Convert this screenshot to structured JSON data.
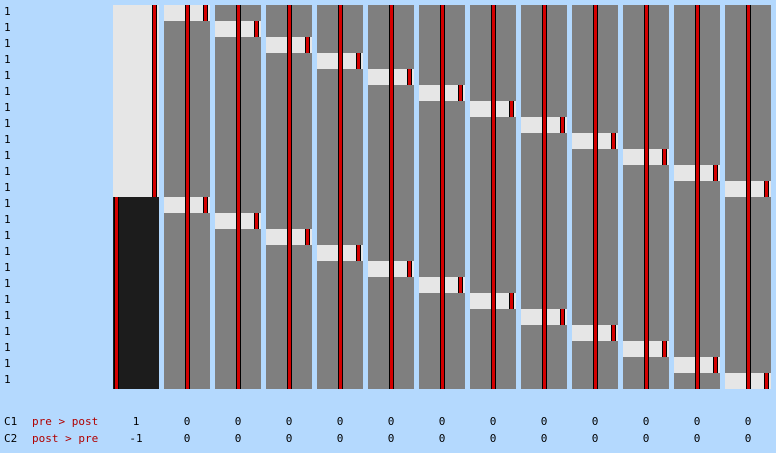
{
  "row_labels": [
    "1",
    "1",
    "1",
    "1",
    "1",
    "1",
    "1",
    "1",
    "1",
    "1",
    "1",
    "1",
    "1",
    "1",
    "1",
    "1",
    "1",
    "1",
    "1",
    "1",
    "1",
    "1",
    "1",
    "1"
  ],
  "num_rows": 24,
  "columns": [
    {
      "kind": "block",
      "light_rows": [
        0,
        12
      ]
    },
    {
      "kind": "pair",
      "light_rows": [
        0,
        12
      ]
    },
    {
      "kind": "pair",
      "light_rows": [
        1,
        13
      ]
    },
    {
      "kind": "pair",
      "light_rows": [
        2,
        14
      ]
    },
    {
      "kind": "pair",
      "light_rows": [
        3,
        15
      ]
    },
    {
      "kind": "pair",
      "light_rows": [
        4,
        16
      ]
    },
    {
      "kind": "pair",
      "light_rows": [
        5,
        17
      ]
    },
    {
      "kind": "pair",
      "light_rows": [
        6,
        18
      ]
    },
    {
      "kind": "pair",
      "light_rows": [
        7,
        19
      ]
    },
    {
      "kind": "pair",
      "light_rows": [
        8,
        20
      ]
    },
    {
      "kind": "pair",
      "light_rows": [
        9,
        21
      ]
    },
    {
      "kind": "pair",
      "light_rows": [
        10,
        22
      ]
    },
    {
      "kind": "pair",
      "light_rows": [
        11,
        23
      ]
    }
  ],
  "contrasts": [
    {
      "id": "C1",
      "name": "pre > post",
      "weights": [
        "1",
        "0",
        "0",
        "0",
        "0",
        "0",
        "0",
        "0",
        "0",
        "0",
        "0",
        "0",
        "0"
      ]
    },
    {
      "id": "C2",
      "name": "post > pre",
      "weights": [
        "-1",
        "0",
        "0",
        "0",
        "0",
        "0",
        "0",
        "0",
        "0",
        "0",
        "0",
        "0",
        "0"
      ]
    }
  ],
  "colors": {
    "background": "#b4d9fe",
    "matrix_gray": "#7f7f7f",
    "matrix_light": "#e6e6e6",
    "matrix_dark": "#1c1c1c",
    "marker_red": "#d40000",
    "contrast_name": "#b00000"
  }
}
